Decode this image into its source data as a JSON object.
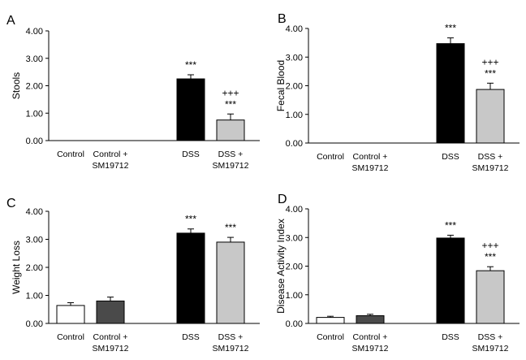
{
  "chart_data": [
    {
      "panel": "A",
      "type": "bar",
      "ylabel": "Stools",
      "ylim": [
        0,
        4
      ],
      "yticks": [
        "0.00",
        "1.00",
        "2.00",
        "3.00",
        "4.00"
      ],
      "categories": [
        [
          "Control"
        ],
        [
          "Control +",
          "SM19712"
        ],
        [
          "DSS"
        ],
        [
          "DSS +",
          "SM19712"
        ]
      ],
      "values": [
        0,
        0,
        2.25,
        0.75
      ],
      "errors": [
        0,
        0,
        0.15,
        0.22
      ],
      "colors": [
        "#ffffff",
        "#4a4a4a",
        "#000000",
        "#c8c8c8"
      ],
      "annotations": [
        [],
        [],
        [
          "***"
        ],
        [
          "+++",
          "***"
        ]
      ]
    },
    {
      "panel": "B",
      "type": "bar",
      "ylabel": "Fecal Blood",
      "ylim": [
        0,
        4
      ],
      "yticks": [
        "0.00",
        "1.00",
        "2.00",
        "3.00",
        "4.00"
      ],
      "categories": [
        [
          "Control"
        ],
        [
          "Control +",
          "SM19712"
        ],
        [
          "DSS"
        ],
        [
          "DSS +",
          "SM19712"
        ]
      ],
      "values": [
        0,
        0,
        3.47,
        1.87
      ],
      "errors": [
        0,
        0,
        0.2,
        0.22
      ],
      "colors": [
        "#ffffff",
        "#4a4a4a",
        "#000000",
        "#c8c8c8"
      ],
      "annotations": [
        [],
        [],
        [
          "***"
        ],
        [
          "+++",
          "***"
        ]
      ]
    },
    {
      "panel": "C",
      "type": "bar",
      "ylabel": "Weight Loss",
      "ylim": [
        0,
        4
      ],
      "yticks": [
        "0.00",
        "1.00",
        "2.00",
        "3.00",
        "4.00"
      ],
      "categories": [
        [
          "Control"
        ],
        [
          "Control +",
          "SM19712"
        ],
        [
          "DSS"
        ],
        [
          "DSS +",
          "SM19712"
        ]
      ],
      "values": [
        0.64,
        0.8,
        3.22,
        2.9
      ],
      "errors": [
        0.1,
        0.14,
        0.15,
        0.17
      ],
      "colors": [
        "#ffffff",
        "#4a4a4a",
        "#000000",
        "#c8c8c8"
      ],
      "annotations": [
        [],
        [],
        [
          "***"
        ],
        [
          "***"
        ]
      ]
    },
    {
      "panel": "D",
      "type": "bar",
      "ylabel": "Disease Activity Index",
      "ylim": [
        0,
        4
      ],
      "yticks": [
        "0.00",
        "1.00",
        "2.00",
        "3.00",
        "4.00"
      ],
      "categories": [
        [
          "Control"
        ],
        [
          "Control +",
          "SM19712"
        ],
        [
          "DSS"
        ],
        [
          "DSS +",
          "SM19712"
        ]
      ],
      "values": [
        0.21,
        0.27,
        2.98,
        1.84
      ],
      "errors": [
        0.04,
        0.05,
        0.1,
        0.14
      ],
      "colors": [
        "#ffffff",
        "#4a4a4a",
        "#000000",
        "#c8c8c8"
      ],
      "annotations": [
        [],
        [],
        [
          "***"
        ],
        [
          "+++",
          "***"
        ]
      ]
    }
  ]
}
